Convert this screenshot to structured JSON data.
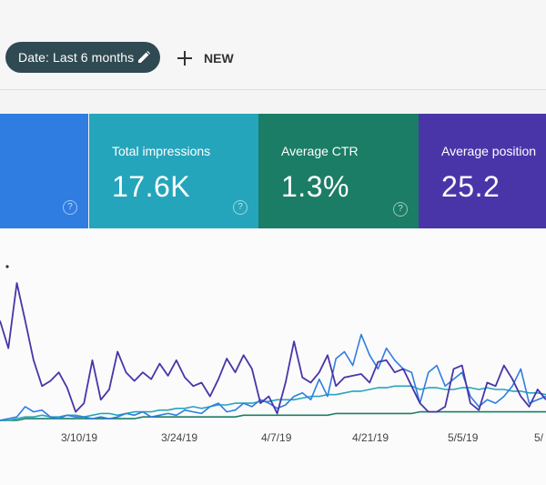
{
  "toolbar": {
    "date_label": "Date: Last 6 months",
    "new_label": "NEW"
  },
  "cards": [
    {
      "label": "",
      "value": "",
      "color": "#2f7de1"
    },
    {
      "label": "Total impressions",
      "value": "17.6K",
      "color": "#25a5bb"
    },
    {
      "label": "Average CTR",
      "value": "1.3%",
      "color": "#1b7d66"
    },
    {
      "label": "Average position",
      "value": "25.2",
      "color": "#4a35a8"
    }
  ],
  "help_glyph": "?",
  "chart_data": {
    "type": "line",
    "x_ticks": [
      "3/10/19",
      "3/24/19",
      "4/7/19",
      "4/21/19",
      "5/5/19",
      "5/"
    ],
    "series": [
      {
        "color": "#4a35a8",
        "values": [
          0.58,
          0.42,
          0.8,
          0.58,
          0.35,
          0.2,
          0.23,
          0.28,
          0.19,
          0.05,
          0.1,
          0.35,
          0.12,
          0.18,
          0.4,
          0.28,
          0.23,
          0.28,
          0.24,
          0.33,
          0.26,
          0.35,
          0.25,
          0.2,
          0.22,
          0.14,
          0.24,
          0.36,
          0.28,
          0.38,
          0.3,
          0.1,
          0.14,
          0.04,
          0.22,
          0.46,
          0.25,
          0.22,
          0.28,
          0.38,
          0.2,
          0.25,
          0.26,
          0.27,
          0.22,
          0.34,
          0.35,
          0.28,
          0.3,
          0.2,
          0.1,
          0.05,
          0.05,
          0.08,
          0.3,
          0.32,
          0.1,
          0.06,
          0.22,
          0.2,
          0.32,
          0.24,
          0.14,
          0.08,
          0.18,
          0.12
        ]
      },
      {
        "color": "#2f7de1",
        "values": [
          0.0,
          0.01,
          0.02,
          0.08,
          0.05,
          0.06,
          0.02,
          0.01,
          0.03,
          0.02,
          0.02,
          0.01,
          0.02,
          0.01,
          0.02,
          0.04,
          0.03,
          0.05,
          0.02,
          0.03,
          0.04,
          0.03,
          0.06,
          0.05,
          0.04,
          0.08,
          0.1,
          0.05,
          0.06,
          0.1,
          0.08,
          0.12,
          0.1,
          0.07,
          0.09,
          0.14,
          0.16,
          0.12,
          0.24,
          0.14,
          0.36,
          0.4,
          0.32,
          0.5,
          0.38,
          0.3,
          0.42,
          0.35,
          0.3,
          0.28,
          0.1,
          0.28,
          0.32,
          0.2,
          0.24,
          0.28,
          0.14,
          0.08,
          0.12,
          0.1,
          0.14,
          0.2,
          0.3,
          0.1,
          0.12,
          0.14
        ]
      },
      {
        "color": "#25a5bb",
        "values": [
          0.0,
          0.0,
          0.01,
          0.02,
          0.02,
          0.03,
          0.02,
          0.02,
          0.03,
          0.03,
          0.02,
          0.03,
          0.04,
          0.04,
          0.03,
          0.04,
          0.05,
          0.05,
          0.05,
          0.06,
          0.06,
          0.07,
          0.07,
          0.08,
          0.07,
          0.08,
          0.09,
          0.09,
          0.1,
          0.1,
          0.1,
          0.11,
          0.11,
          0.12,
          0.12,
          0.12,
          0.13,
          0.14,
          0.14,
          0.15,
          0.15,
          0.16,
          0.17,
          0.17,
          0.18,
          0.19,
          0.19,
          0.2,
          0.2,
          0.2,
          0.18,
          0.19,
          0.19,
          0.18,
          0.18,
          0.19,
          0.19,
          0.18,
          0.19,
          0.18,
          0.18,
          0.17,
          0.17,
          0.16,
          0.16,
          0.15
        ]
      },
      {
        "color": "#1b7d66",
        "values": [
          0.0,
          0.0,
          0.0,
          0.01,
          0.01,
          0.01,
          0.01,
          0.01,
          0.01,
          0.01,
          0.01,
          0.01,
          0.01,
          0.01,
          0.01,
          0.01,
          0.01,
          0.02,
          0.02,
          0.02,
          0.02,
          0.02,
          0.02,
          0.02,
          0.02,
          0.02,
          0.02,
          0.02,
          0.02,
          0.03,
          0.03,
          0.03,
          0.03,
          0.03,
          0.03,
          0.03,
          0.03,
          0.03,
          0.03,
          0.03,
          0.04,
          0.04,
          0.04,
          0.04,
          0.04,
          0.04,
          0.04,
          0.04,
          0.04,
          0.04,
          0.05,
          0.05,
          0.05,
          0.05,
          0.05,
          0.05,
          0.05,
          0.05,
          0.05,
          0.05,
          0.05,
          0.05,
          0.05,
          0.05,
          0.05,
          0.05
        ]
      }
    ]
  }
}
